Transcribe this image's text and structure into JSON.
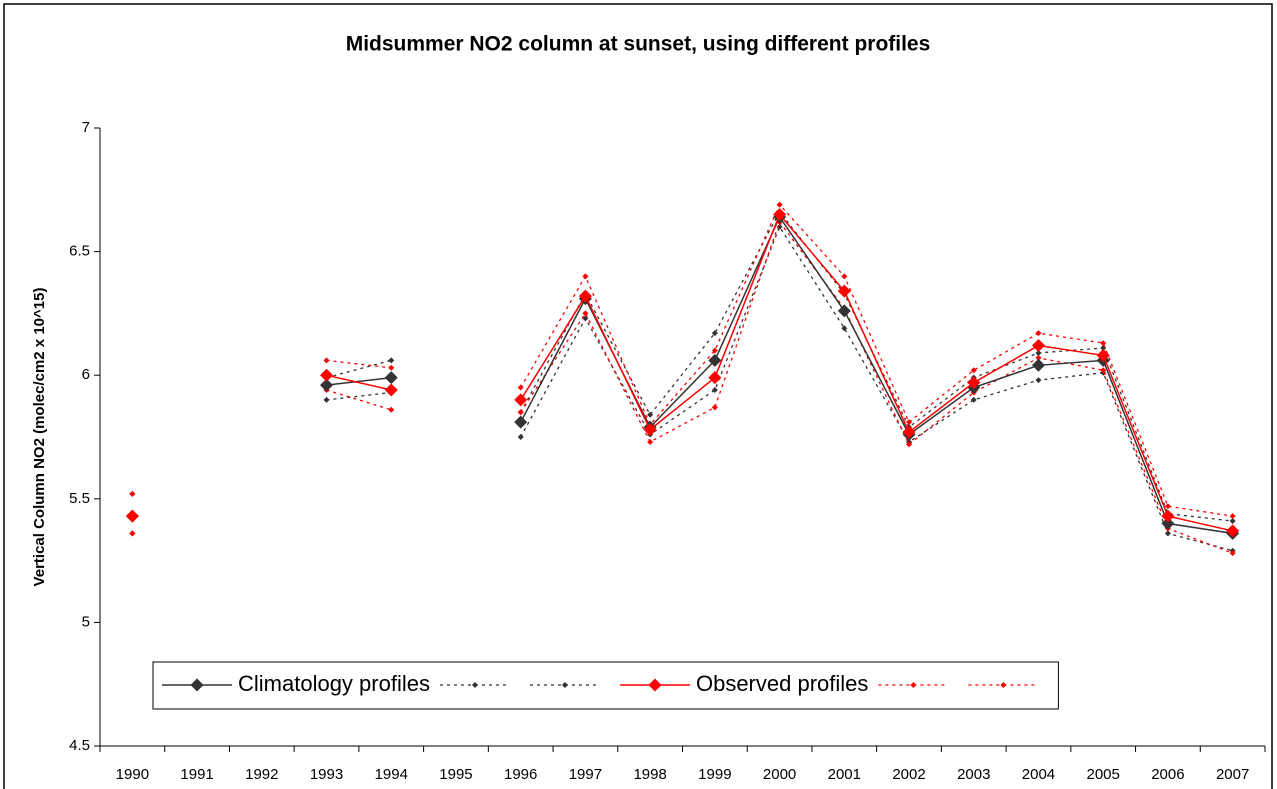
{
  "chart_data": {
    "type": "line",
    "title": "Midsummer NO2 column at sunset, using different profiles",
    "y_label": "Vertical Column NO2 (molec/cm2 x 10^15)",
    "categories": [
      "1990",
      "1991",
      "1992",
      "1993",
      "1994",
      "1995",
      "1996",
      "1997",
      "1998",
      "1999",
      "2000",
      "2001",
      "2002",
      "2003",
      "2004",
      "2005",
      "2006",
      "2007"
    ],
    "ylim": [
      4.5,
      7
    ],
    "yticks": [
      4.5,
      5,
      5.5,
      6,
      6.5,
      7
    ],
    "grid": false,
    "legend": "bottom",
    "series": [
      {
        "name": "Climatology profiles",
        "color": "#333333",
        "line_style": "solid",
        "values": [
          5.43,
          null,
          null,
          5.96,
          5.99,
          null,
          5.81,
          6.31,
          5.79,
          6.06,
          6.64,
          6.26,
          5.76,
          5.95,
          6.04,
          6.06,
          5.4,
          5.36
        ]
      },
      {
        "color": "#333333",
        "line_style": "dotted",
        "values": [
          5.52,
          null,
          null,
          5.99,
          6.06,
          null,
          5.85,
          6.33,
          5.84,
          6.17,
          6.66,
          6.33,
          5.79,
          5.99,
          6.09,
          6.11,
          5.44,
          5.41
        ]
      },
      {
        "color": "#333333",
        "line_style": "dotted",
        "values": [
          5.36,
          null,
          null,
          5.9,
          5.93,
          null,
          5.75,
          6.23,
          5.76,
          5.94,
          6.6,
          6.19,
          5.73,
          5.9,
          5.98,
          6.01,
          5.36,
          5.29
        ]
      },
      {
        "name": "Observed profiles",
        "color": "#ff0000",
        "line_style": "solid",
        "values": [
          5.43,
          null,
          null,
          6.0,
          5.94,
          null,
          5.9,
          6.32,
          5.78,
          5.99,
          6.65,
          6.34,
          5.77,
          5.97,
          6.12,
          6.08,
          5.43,
          5.37
        ]
      },
      {
        "color": "#ff0000",
        "line_style": "dotted",
        "values": [
          5.52,
          null,
          null,
          6.06,
          6.03,
          null,
          5.95,
          6.4,
          5.8,
          6.1,
          6.69,
          6.4,
          5.81,
          6.02,
          6.17,
          6.13,
          5.47,
          5.43
        ]
      },
      {
        "color": "#ff0000",
        "line_style": "dotted",
        "values": [
          5.36,
          null,
          null,
          5.94,
          5.86,
          null,
          5.85,
          6.25,
          5.73,
          5.87,
          6.62,
          6.27,
          5.72,
          5.93,
          6.07,
          6.02,
          5.38,
          5.28
        ]
      }
    ]
  }
}
